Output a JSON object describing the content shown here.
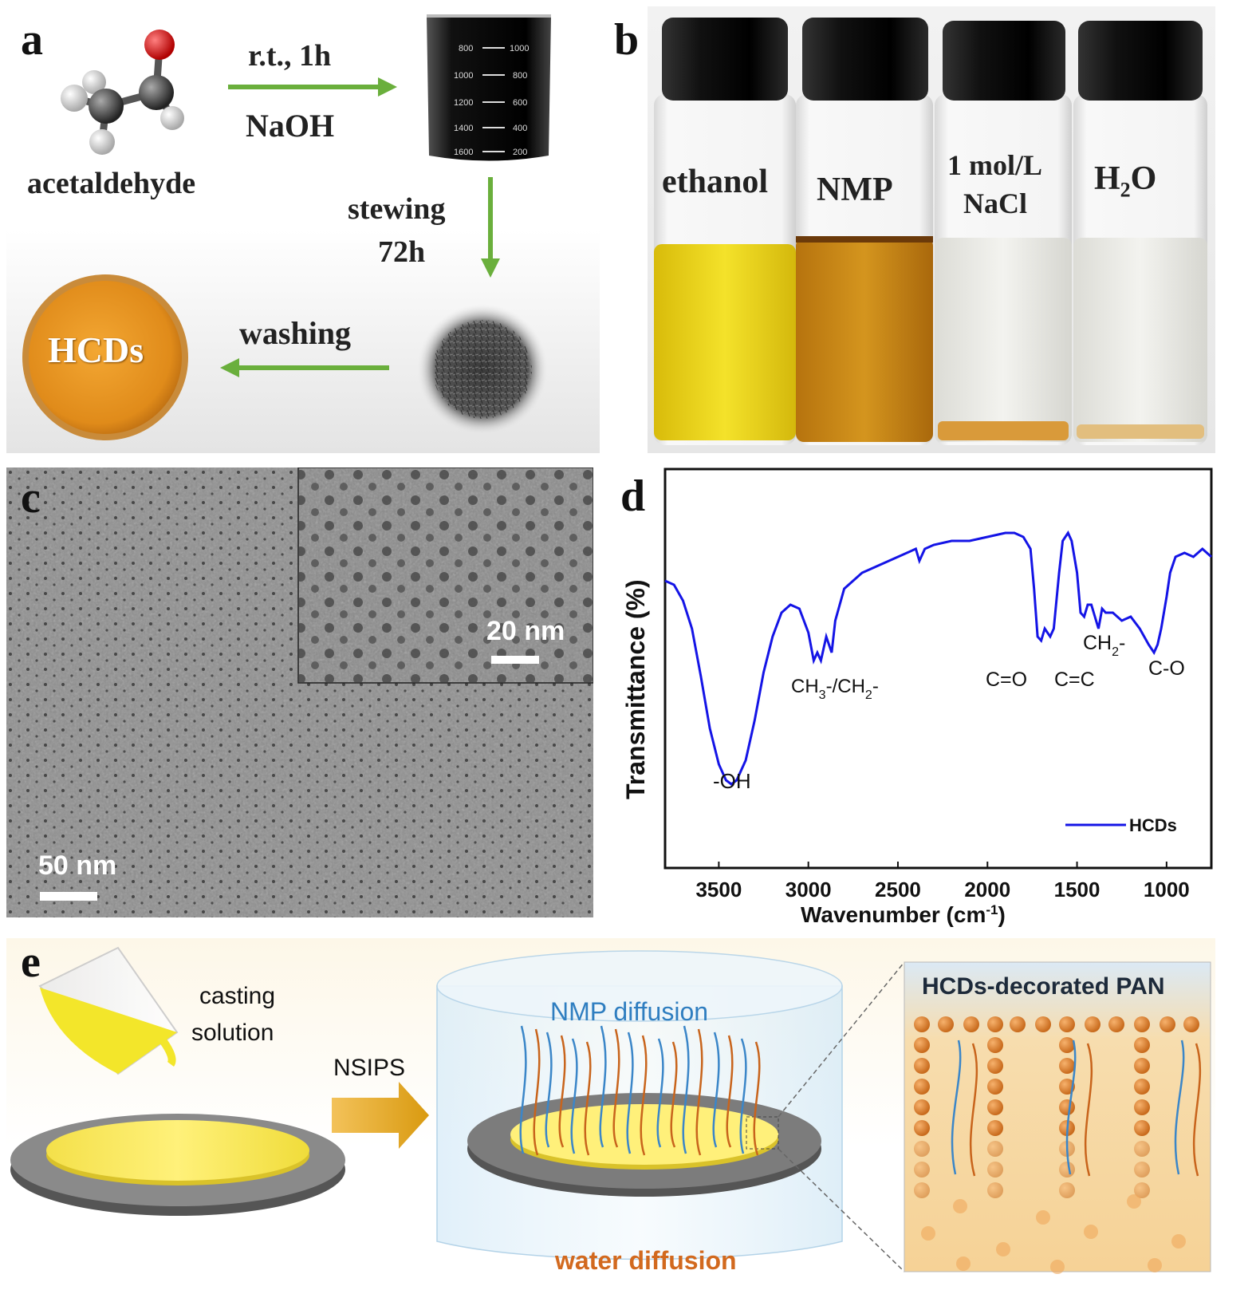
{
  "panel_a": {
    "label": "a",
    "reagent": "acetaldehyde",
    "step1_top": "r.t., 1h",
    "step1_bottom": "NaOH",
    "step2_line1": "stewing",
    "step2_line2": "72h",
    "step3": "washing",
    "product": "HCDs",
    "beaker_marks_left": [
      "800",
      "1000",
      "1200",
      "1400",
      "1600"
    ],
    "beaker_marks_right": [
      "1000",
      "800",
      "600",
      "400",
      "200"
    ]
  },
  "panel_b": {
    "label": "b",
    "vials": [
      {
        "line1": "ethanol",
        "line2": "",
        "color": "#e8d21a"
      },
      {
        "line1": "NMP",
        "line2": "",
        "color": "#c98a1f"
      },
      {
        "line1": "1 mol/L",
        "line2": "NaCl",
        "color": "#eeeeea"
      },
      {
        "line1": "H",
        "sub": "2",
        "line1b": "O",
        "line2": "",
        "color": "#ecebe6"
      }
    ]
  },
  "panel_c": {
    "label": "c",
    "scale_main": "50 nm",
    "scale_inset": "20 nm"
  },
  "panel_d": {
    "label": "d",
    "legend": "HCDs",
    "annotations": {
      "oh": "-OH",
      "ch3": "CH",
      "ch3_sub": "3",
      "ch3_mid": "-/CH",
      "ch3_sub2": "2",
      "ch3_end": "-",
      "co_double": "C=O",
      "cc_double": "C=C",
      "ch2": "CH",
      "ch2_sub": "2",
      "ch2_end": "-",
      "c_o": "C-O"
    }
  },
  "chart_data": {
    "type": "line",
    "xlabel": "Wavenumber (cm",
    "xlabel_sup": "-1",
    "xlabel_end": ")",
    "ylabel": "Transmittance (%)",
    "xlim": [
      3800,
      750
    ],
    "ylim": [
      0,
      100
    ],
    "x_reversed": true,
    "xticks": [
      3500,
      3000,
      2500,
      2000,
      1500,
      1000
    ],
    "legend_position": "bottom-right",
    "series": [
      {
        "name": "HCDs",
        "color": "#1414e6",
        "x": [
          3800,
          3750,
          3700,
          3650,
          3600,
          3550,
          3500,
          3460,
          3430,
          3400,
          3350,
          3300,
          3250,
          3200,
          3150,
          3100,
          3050,
          3000,
          2970,
          2950,
          2930,
          2900,
          2870,
          2850,
          2800,
          2700,
          2600,
          2500,
          2400,
          2380,
          2350,
          2300,
          2200,
          2100,
          2000,
          1900,
          1850,
          1800,
          1760,
          1740,
          1720,
          1700,
          1680,
          1650,
          1630,
          1600,
          1580,
          1550,
          1530,
          1500,
          1480,
          1460,
          1440,
          1420,
          1400,
          1380,
          1360,
          1340,
          1300,
          1250,
          1200,
          1150,
          1100,
          1070,
          1050,
          1030,
          1000,
          980,
          950,
          900,
          850,
          800,
          750
        ],
        "y": [
          72,
          71,
          67,
          60,
          48,
          35,
          26,
          22,
          21,
          22,
          27,
          37,
          49,
          58,
          64,
          66,
          65,
          59,
          52,
          54,
          52,
          58,
          54,
          62,
          70,
          74,
          76,
          78,
          80,
          77,
          80,
          81,
          82,
          82,
          83,
          84,
          84,
          83,
          80,
          70,
          58,
          57,
          60,
          58,
          60,
          74,
          82,
          84,
          82,
          74,
          64,
          63,
          66,
          66,
          63,
          60,
          65,
          64,
          64,
          62,
          63,
          60,
          56,
          54,
          56,
          60,
          68,
          74,
          78,
          79,
          78,
          80,
          78
        ]
      }
    ]
  },
  "panel_e": {
    "label": "e",
    "casting_line1": "casting",
    "casting_line2": "solution",
    "process": "NSIPS",
    "nmp": "NMP diffusion",
    "water": "water diffusion",
    "inset_title": "HCDs-decorated PAN"
  }
}
